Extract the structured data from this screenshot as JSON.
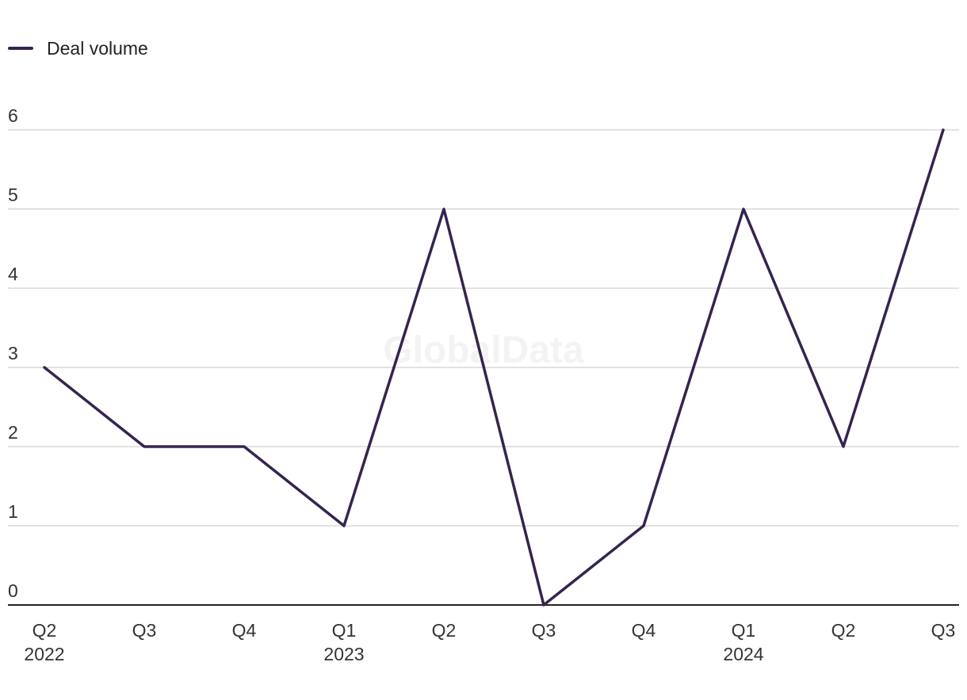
{
  "legend": {
    "label": "Deal volume"
  },
  "watermark": "GlobalData",
  "colors": {
    "series": "#35244f",
    "grid": "#d9d9d9",
    "axis": "#222222"
  },
  "chart_data": {
    "type": "line",
    "categories": [
      {
        "quarter": "Q2",
        "year": "2022"
      },
      {
        "quarter": "Q3",
        "year": ""
      },
      {
        "quarter": "Q4",
        "year": ""
      },
      {
        "quarter": "Q1",
        "year": "2023"
      },
      {
        "quarter": "Q2",
        "year": ""
      },
      {
        "quarter": "Q3",
        "year": ""
      },
      {
        "quarter": "Q4",
        "year": ""
      },
      {
        "quarter": "Q1",
        "year": "2024"
      },
      {
        "quarter": "Q2",
        "year": ""
      },
      {
        "quarter": "Q3",
        "year": ""
      }
    ],
    "series": [
      {
        "name": "Deal volume",
        "values": [
          3,
          2,
          2,
          1,
          5,
          0,
          1,
          5,
          2,
          6
        ]
      }
    ],
    "yticks": [
      0,
      1,
      2,
      3,
      4,
      5,
      6
    ],
    "ylim": [
      0,
      6
    ],
    "grid": true,
    "legend_position": "top-left"
  }
}
